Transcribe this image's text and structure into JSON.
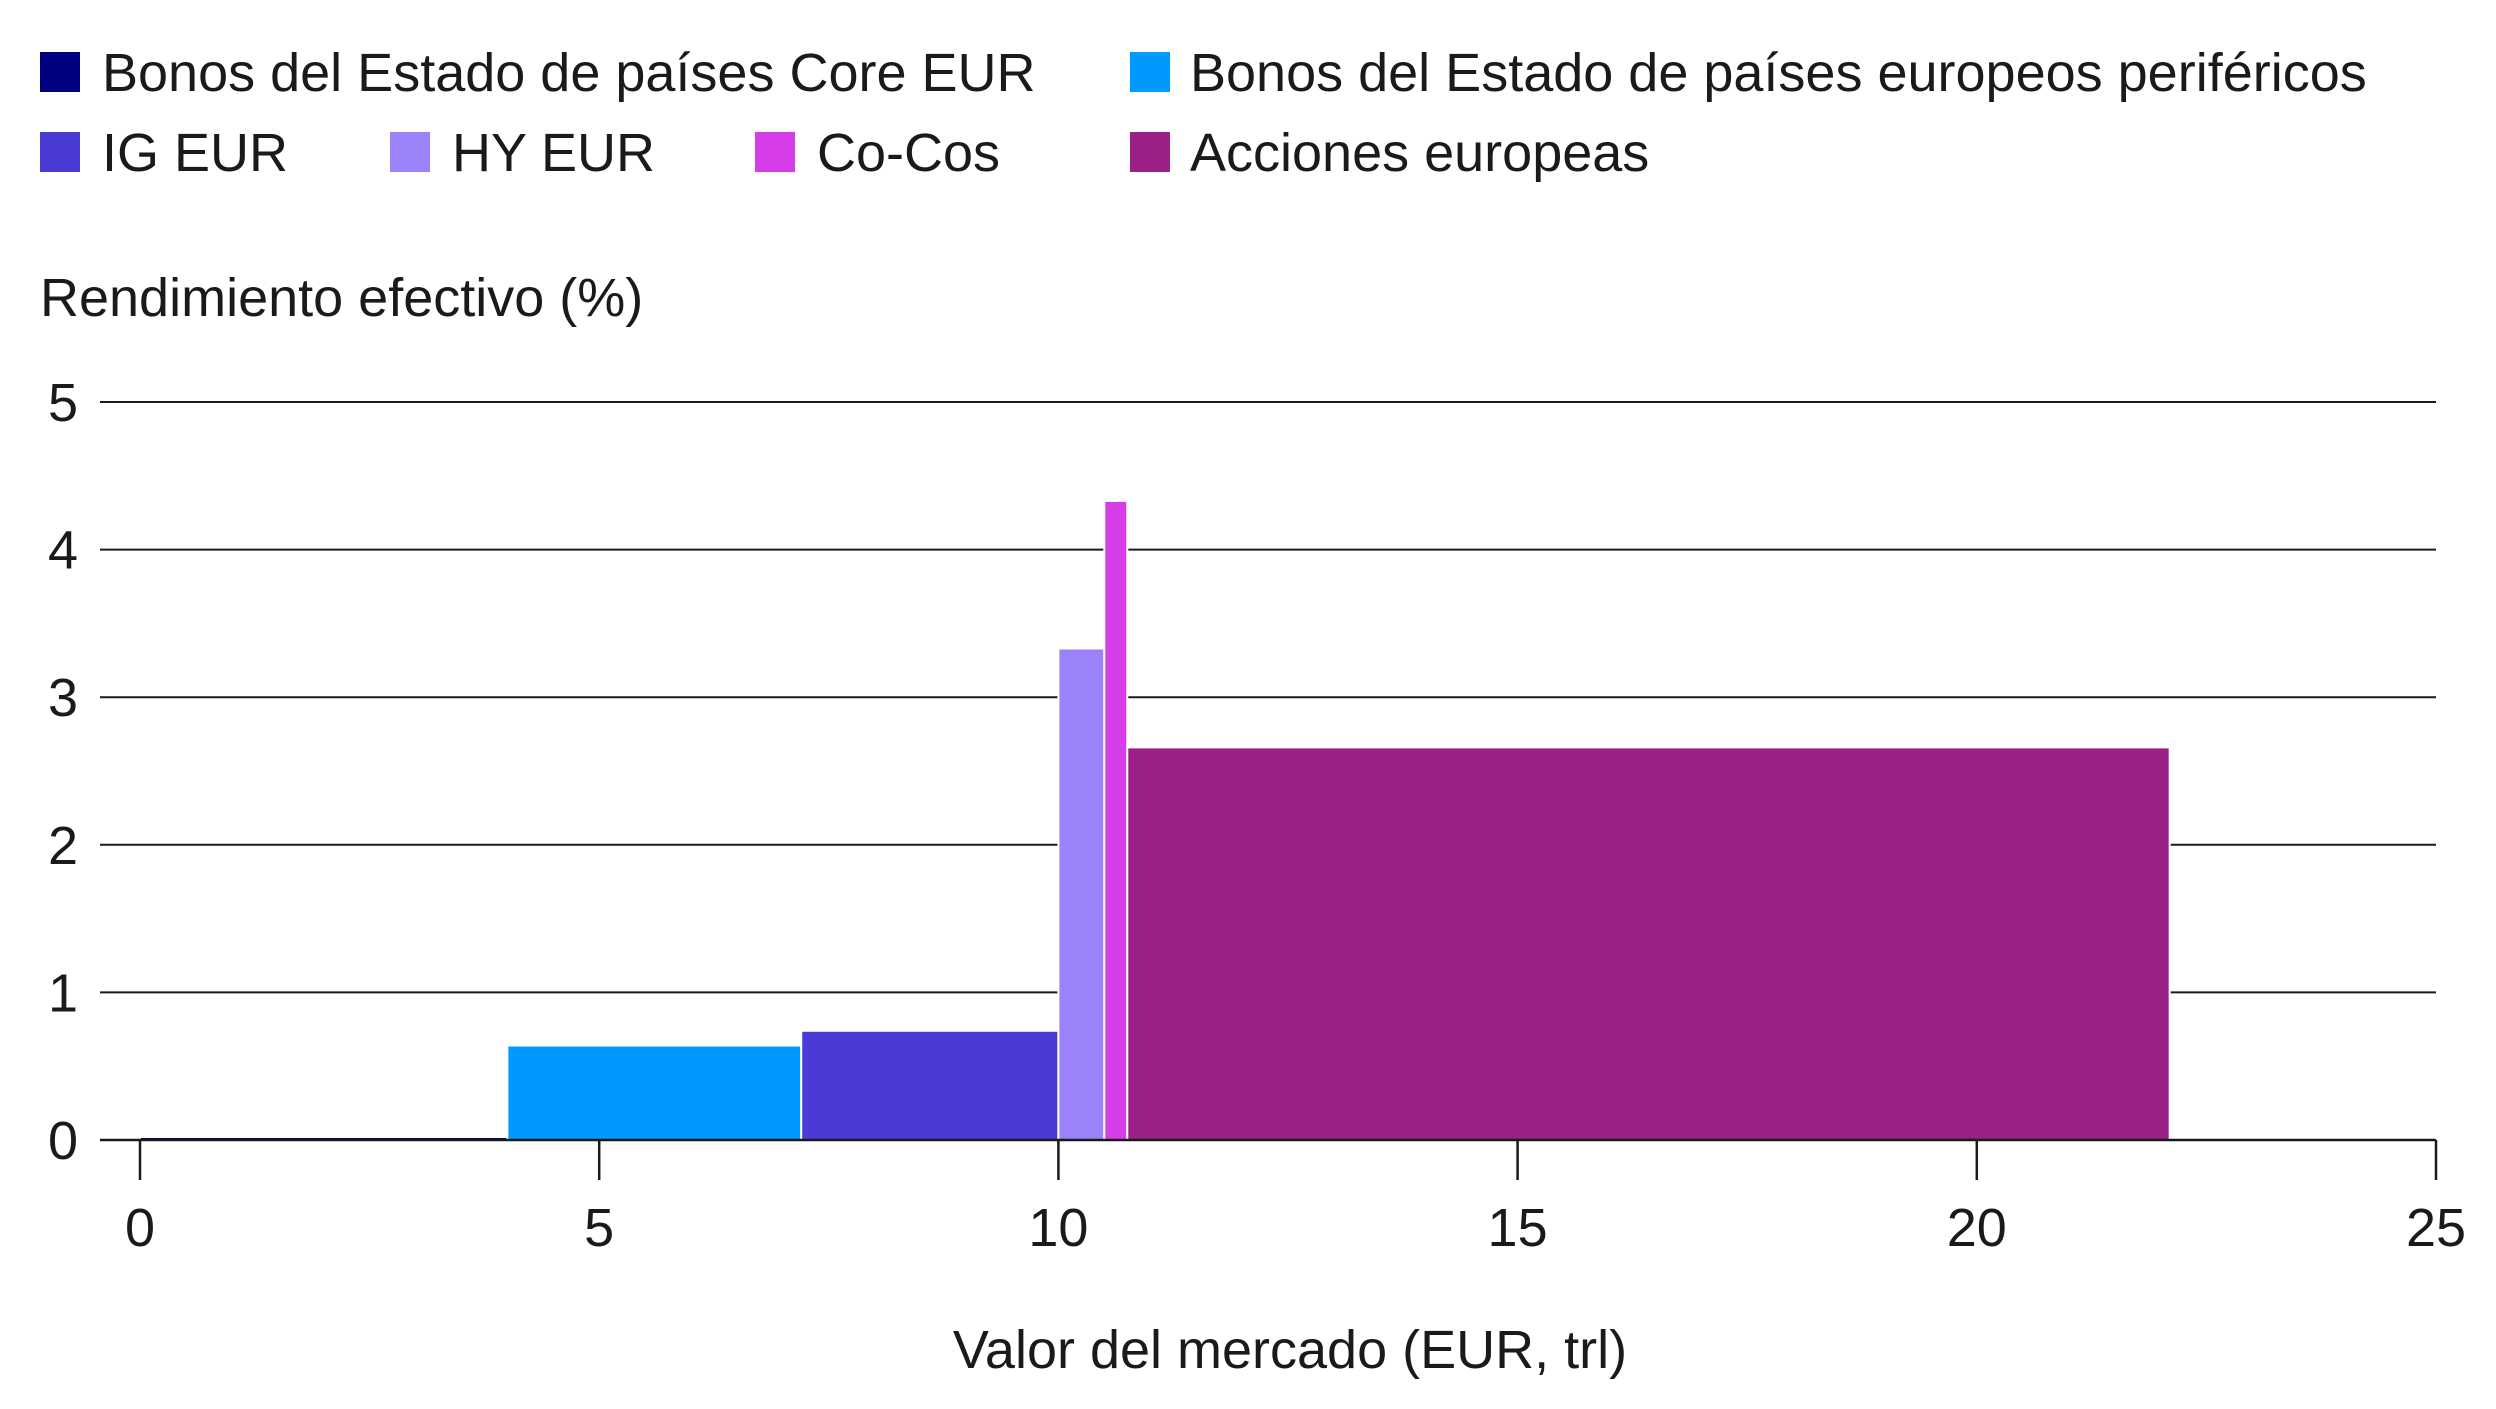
{
  "chart_data": {
    "type": "bar",
    "subtype": "variable-width",
    "ylabel": "Rendimiento efectivo (%)",
    "xlabel": "Valor del mercado (EUR, trl)",
    "xlim": [
      0,
      25
    ],
    "ylim": [
      0,
      5
    ],
    "xticks": [
      "0",
      "5",
      "10",
      "15",
      "20",
      "25"
    ],
    "yticks": [
      "0",
      "1",
      "2",
      "3",
      "4",
      "5"
    ],
    "grid": true,
    "legend_position": "top",
    "series": [
      {
        "name": "Bonos del Estado de países Core EUR",
        "color": "#000080",
        "x_start": 0.0,
        "x_end": 4.0,
        "value": 0.01
      },
      {
        "name": "Bonos del Estado de países europeos periféricos",
        "color": "#0099ff",
        "x_start": 4.0,
        "x_end": 7.2,
        "value": 0.64
      },
      {
        "name": "IG EUR",
        "color": "#4b3bd6",
        "x_start": 7.2,
        "x_end": 10.0,
        "value": 0.74
      },
      {
        "name": "HY EUR",
        "color": "#9b82fb",
        "x_start": 10.0,
        "x_end": 10.5,
        "value": 3.33
      },
      {
        "name": "Co-Cos",
        "color": "#d63ce8",
        "x_start": 10.5,
        "x_end": 10.75,
        "value": 4.33
      },
      {
        "name": "Acciones europeas",
        "color": "#9a2086",
        "x_start": 10.75,
        "x_end": 22.1,
        "value": 2.66
      }
    ]
  }
}
